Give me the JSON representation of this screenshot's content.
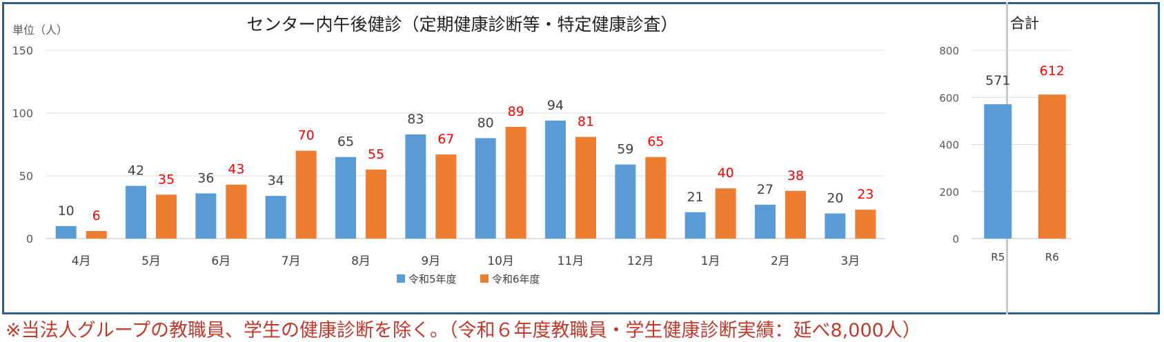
{
  "chart_data": [
    {
      "type": "bar",
      "title": "センター内午後健診（定期健康診断等・特定健康診査）",
      "ylabel": "単位（人）",
      "ylim": [
        0,
        150
      ],
      "yticks": [
        0,
        50,
        100,
        150
      ],
      "grid": true,
      "legend": "bottom",
      "categories": [
        "4月",
        "5月",
        "6月",
        "7月",
        "8月",
        "9月",
        "10月",
        "11月",
        "12月",
        "1月",
        "2月",
        "3月"
      ],
      "series": [
        {
          "name": "令和5年度",
          "color": "#5b9bd5",
          "label_color": "#404040",
          "values": [
            10,
            42,
            36,
            34,
            65,
            83,
            80,
            94,
            59,
            21,
            27,
            20
          ]
        },
        {
          "name": "令和6年度",
          "color": "#ed7d31",
          "label_color": "#ff0000",
          "values": [
            6,
            35,
            43,
            70,
            55,
            67,
            89,
            81,
            65,
            40,
            38,
            23
          ]
        }
      ]
    },
    {
      "type": "bar",
      "title": "合計",
      "ylim": [
        0,
        800
      ],
      "yticks": [
        0,
        200,
        400,
        600,
        800
      ],
      "grid": true,
      "categories": [
        "R5",
        "R6"
      ],
      "values": [
        571,
        612
      ],
      "colors": [
        "#5b9bd5",
        "#ed7d31"
      ],
      "label_colors": [
        "#404040",
        "#ff0000"
      ]
    }
  ],
  "footnote": "※当法人グループの教職員、学生の健康診断を除く。（令和６年度教職員・学生健康診断実績：延べ8,000人）"
}
